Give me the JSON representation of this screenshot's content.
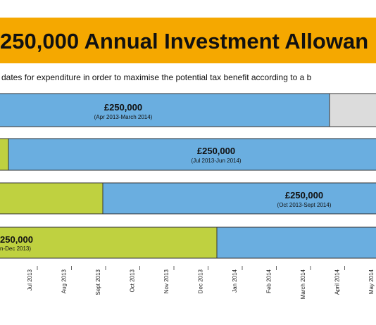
{
  "header": {
    "title": "250,000 Annual Investment Allowan",
    "subtitle": "dates for expenditure in order to maximise the potential tax benefit according to a b"
  },
  "rows": [
    {
      "amount": "£250,000",
      "period": "(Apr 2013-March 2014)"
    },
    {
      "amount": "£250,000",
      "period": "(Jul 2013-Jun 2014)"
    },
    {
      "amount": "£250,000",
      "period": "(Oct 2013-Sept 2014)"
    },
    {
      "amount": "250,000",
      "period": "n-Dec 2013)"
    }
  ],
  "axis": {
    "labels": [
      "Jul 2013",
      "Aug 2013",
      "Sept 2013",
      "Oct 2013",
      "Nov 2013",
      "Dec 2013",
      "Jan 2014",
      "Feb 2014",
      "March 2014",
      "April 2014",
      "May 2014"
    ]
  }
}
